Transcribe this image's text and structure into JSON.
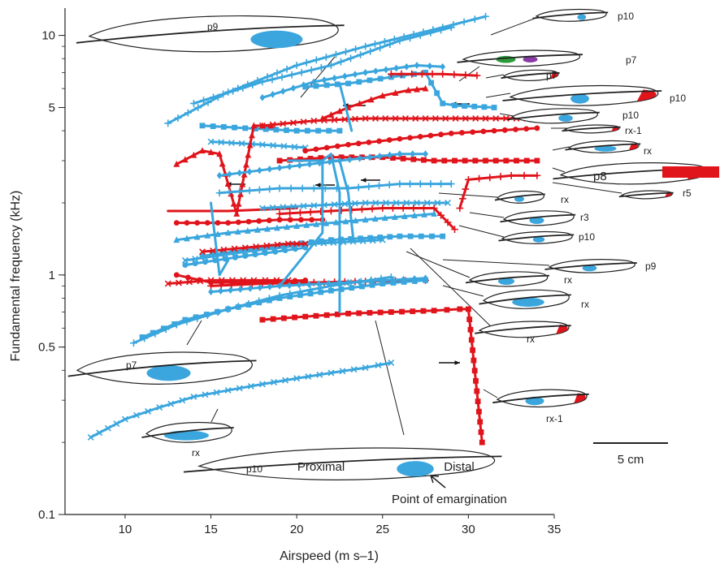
{
  "chart_data": {
    "type": "line",
    "xlabel": "Airspeed (m s–1)",
    "ylabel": "Fundamental frequency (kHz)",
    "xlim": [
      6.5,
      35
    ],
    "ylim": [
      0.1,
      13
    ],
    "y_scale": "log",
    "x_ticks": [
      "10",
      "15",
      "20",
      "25",
      "30",
      "35"
    ],
    "y_ticks": [
      "0.1",
      "0.5",
      "1",
      "5",
      "10"
    ],
    "grid": false,
    "colors": {
      "blue": "#3aa6dd",
      "red": "#e0141b",
      "outline": "#222222",
      "green": "#2a9a3a",
      "purple": "#8a3aa6"
    },
    "series": [
      {
        "color": "#3aa6dd",
        "marker": "plus",
        "x": [
          12.5,
          16,
          20,
          24,
          28.5,
          31
        ],
        "y": [
          4.3,
          5.8,
          7.5,
          9.0,
          10.8,
          12.0
        ]
      },
      {
        "color": "#3aa6dd",
        "marker": "plus",
        "x": [
          14,
          18,
          22,
          26,
          29
        ],
        "y": [
          5.2,
          6.4,
          7.5,
          9.5,
          10.8
        ]
      },
      {
        "color": "#3aa6dd",
        "marker": "diamond",
        "x": [
          18,
          21,
          24,
          27,
          28.5
        ],
        "y": [
          5.5,
          6.4,
          7.0,
          7.5,
          7.4
        ]
      },
      {
        "color": "#3aa6dd",
        "marker": "square",
        "x": [
          20.5,
          23,
          25.5,
          27.5,
          28.5,
          29.2,
          31.5
        ],
        "y": [
          6.1,
          6.3,
          6.7,
          7.0,
          5.2,
          5.1,
          5.0
        ]
      },
      {
        "color": "#e0141b",
        "marker": "plus",
        "x": [
          25.5,
          28.5,
          30.5
        ],
        "y": [
          6.9,
          6.9,
          6.8
        ]
      },
      {
        "color": "#e0141b",
        "marker": "triangle",
        "x": [
          21.5,
          23,
          25,
          26.5,
          27.5
        ],
        "y": [
          4.5,
          5.0,
          5.6,
          5.9,
          6.0
        ]
      },
      {
        "color": "#3aa6dd",
        "marker": "square",
        "x": [
          14.5,
          17,
          20,
          22.5
        ],
        "y": [
          4.2,
          4.1,
          4.0,
          4.0
        ]
      },
      {
        "color": "#3aa6dd",
        "marker": "cross",
        "x": [
          15,
          18,
          20.5
        ],
        "y": [
          3.6,
          3.5,
          3.4
        ]
      },
      {
        "color": "#e0141b",
        "marker": "triangle",
        "x": [
          13,
          14.5,
          15.5,
          16.5,
          17.5,
          18.5
        ],
        "y": [
          2.9,
          3.3,
          3.2,
          1.8,
          4.2,
          4.2
        ]
      },
      {
        "color": "#e0141b",
        "marker": "cross",
        "x": [
          18,
          21,
          24,
          27.5,
          31,
          34
        ],
        "y": [
          4.2,
          4.4,
          4.5,
          4.5,
          4.5,
          4.5
        ]
      },
      {
        "color": "#e0141b",
        "marker": "circle",
        "x": [
          20.5,
          23,
          26,
          29,
          31.5,
          34
        ],
        "y": [
          3.3,
          3.5,
          3.7,
          3.9,
          4.0,
          4.1
        ]
      },
      {
        "color": "#e0141b",
        "marker": "square",
        "x": [
          19,
          22,
          25,
          28,
          31,
          34
        ],
        "y": [
          3.0,
          3.1,
          3.1,
          3.0,
          3.0,
          3.0
        ]
      },
      {
        "color": "#3aa6dd",
        "marker": "diamond",
        "x": [
          15.5,
          19,
          22.5,
          26,
          27.5
        ],
        "y": [
          2.6,
          2.8,
          3.0,
          3.2,
          3.2
        ]
      },
      {
        "color": "#e0141b",
        "marker": "plus",
        "x": [
          29.5,
          30,
          32.5,
          34
        ],
        "y": [
          1.9,
          2.5,
          2.6,
          2.6
        ]
      },
      {
        "color": "#3aa6dd",
        "marker": "plus",
        "x": [
          15.5,
          19,
          23,
          26,
          29
        ],
        "y": [
          2.2,
          2.3,
          2.3,
          2.4,
          2.4
        ]
      },
      {
        "color": "#e0141b",
        "marker": "none",
        "x": [
          12.5,
          16,
          20
        ],
        "y": [
          1.85,
          1.85,
          1.9
        ]
      },
      {
        "color": "#e0141b",
        "marker": "plus",
        "x": [
          19,
          22,
          25,
          28,
          29.2
        ],
        "y": [
          1.8,
          1.85,
          1.9,
          1.9,
          1.55
        ]
      },
      {
        "color": "#3aa6dd",
        "marker": "cross",
        "x": [
          18,
          21,
          24,
          27,
          28.8
        ],
        "y": [
          1.9,
          1.95,
          2.0,
          2.0,
          2.0
        ]
      },
      {
        "color": "#e0141b",
        "marker": "circle",
        "x": [
          13,
          16,
          19,
          21.5
        ],
        "y": [
          1.65,
          1.65,
          1.7,
          1.7
        ]
      },
      {
        "color": "#3aa6dd",
        "marker": "triangle",
        "x": [
          13,
          16,
          20,
          24,
          28
        ],
        "y": [
          1.4,
          1.5,
          1.6,
          1.7,
          1.8
        ]
      },
      {
        "color": "#3aa6dd",
        "marker": "square",
        "x": [
          14.5,
          18,
          22,
          26,
          28.5
        ],
        "y": [
          1.2,
          1.3,
          1.4,
          1.45,
          1.45
        ]
      },
      {
        "color": "#3aa6dd",
        "marker": "cross",
        "x": [
          13.5,
          17,
          21,
          25
        ],
        "y": [
          1.15,
          1.25,
          1.35,
          1.4
        ]
      },
      {
        "color": "#3aa6dd",
        "marker": "circle",
        "x": [
          13.5,
          17,
          20.5
        ],
        "y": [
          1.1,
          1.2,
          1.3
        ]
      },
      {
        "color": "#e0141b",
        "marker": "cross",
        "x": [
          14.5,
          17,
          19.5,
          20.5
        ],
        "y": [
          1.25,
          1.3,
          1.35,
          1.35
        ]
      },
      {
        "color": "#e0141b",
        "marker": "cross",
        "x": [
          12.5,
          15,
          17.5,
          19.5
        ],
        "y": [
          0.92,
          0.95,
          0.95,
          0.95
        ]
      },
      {
        "color": "#e0141b",
        "marker": "circle",
        "x": [
          13,
          15,
          17.5,
          20.5
        ],
        "y": [
          1.0,
          0.93,
          0.93,
          0.95
        ]
      },
      {
        "color": "#e0141b",
        "marker": "plus",
        "x": [
          15,
          18,
          21,
          24,
          27.5
        ],
        "y": [
          0.9,
          0.92,
          0.93,
          0.94,
          0.95
        ]
      },
      {
        "color": "#3aa6dd",
        "marker": "diamond",
        "x": [
          15,
          19,
          23,
          27.5
        ],
        "y": [
          0.85,
          0.9,
          0.93,
          0.97
        ]
      },
      {
        "color": "#3aa6dd",
        "marker": "square",
        "x": [
          11,
          13.5,
          16,
          19,
          22,
          25,
          27.5
        ],
        "y": [
          0.55,
          0.65,
          0.72,
          0.8,
          0.86,
          0.92,
          0.95
        ]
      },
      {
        "color": "#3aa6dd",
        "marker": "plus",
        "x": [
          10.5,
          13,
          16,
          19,
          22,
          25.5
        ],
        "y": [
          0.52,
          0.62,
          0.72,
          0.82,
          0.9,
          0.98
        ]
      },
      {
        "color": "#e0141b",
        "marker": "square",
        "x": [
          18,
          20.5,
          23,
          25.5,
          28,
          29.5,
          30,
          30.8
        ],
        "y": [
          0.65,
          0.67,
          0.69,
          0.7,
          0.71,
          0.72,
          0.72,
          0.2
        ]
      },
      {
        "color": "#3aa6dd",
        "marker": "cross",
        "x": [
          8,
          10,
          12,
          14,
          16,
          18,
          20,
          22,
          24,
          25.5
        ],
        "y": [
          0.21,
          0.25,
          0.28,
          0.31,
          0.33,
          0.35,
          0.37,
          0.39,
          0.41,
          0.43
        ]
      },
      {
        "color": "#3aa6dd",
        "marker": "none",
        "x": [
          15,
          15.5,
          16
        ],
        "y": [
          2.0,
          1.0,
          1.15
        ]
      },
      {
        "color": "#3aa6dd",
        "marker": "none",
        "x": [
          19.5,
          21.5,
          21.5,
          19
        ],
        "y": [
          3.0,
          3.0,
          1.5,
          0.9
        ]
      },
      {
        "color": "#3aa6dd",
        "marker": "none",
        "x": [
          21.5,
          22,
          22.5,
          22.5,
          22.5
        ],
        "y": [
          3.0,
          3.2,
          2.2,
          1.5,
          0.7
        ]
      },
      {
        "color": "#3aa6dd",
        "marker": "none",
        "x": [
          22,
          22.5,
          23,
          23.3
        ],
        "y": [
          3.0,
          3.0,
          2.2,
          1.4
        ]
      },
      {
        "color": "#3aa6dd",
        "marker": "none",
        "x": [
          22.5,
          23.2
        ],
        "y": [
          6.3,
          4.0
        ]
      }
    ],
    "annotations": [
      "p10",
      "p7",
      "p7",
      "p10",
      "p10",
      "rx-1",
      "rx",
      "p8",
      "r5",
      "rx",
      "r3",
      "p10",
      "p9",
      "rx",
      "rx",
      "rx",
      "rx-1",
      "p9",
      "p7",
      "rx",
      "p10",
      "Proximal",
      "Distal",
      "Point of emargination",
      "5 cm"
    ]
  }
}
